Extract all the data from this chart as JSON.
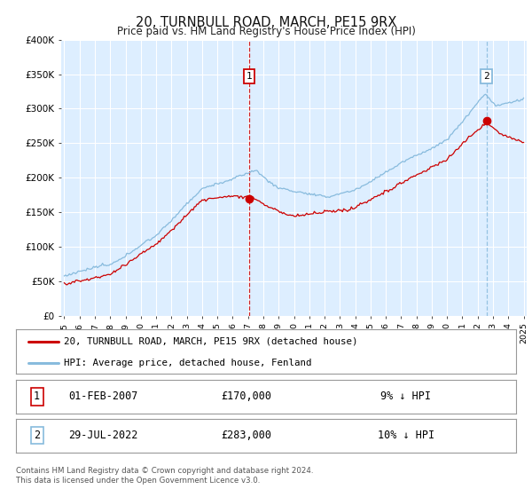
{
  "title": "20, TURNBULL ROAD, MARCH, PE15 9RX",
  "subtitle": "Price paid vs. HM Land Registry's House Price Index (HPI)",
  "legend_line1": "20, TURNBULL ROAD, MARCH, PE15 9RX (detached house)",
  "legend_line2": "HPI: Average price, detached house, Fenland",
  "annotation1_date": "01-FEB-2007",
  "annotation1_price": "£170,000",
  "annotation1_hpi": "9% ↓ HPI",
  "annotation2_date": "29-JUL-2022",
  "annotation2_price": "£283,000",
  "annotation2_hpi": "10% ↓ HPI",
  "footer": "Contains HM Land Registry data © Crown copyright and database right 2024.\nThis data is licensed under the Open Government Licence v3.0.",
  "red_line_color": "#cc0000",
  "blue_line_color": "#88bbdd",
  "plot_bg_color": "#ddeeff",
  "grid_color": "#ffffff",
  "vline1_color": "#cc0000",
  "vline2_color": "#88bbdd",
  "marker1_date_num": 2007.08,
  "marker2_date_num": 2022.57,
  "marker1_value": 170000,
  "marker2_value": 283000,
  "ylim": [
    0,
    400000
  ],
  "yticks": [
    0,
    50000,
    100000,
    150000,
    200000,
    250000,
    300000,
    350000,
    400000
  ],
  "ytick_labels": [
    "£0",
    "£50K",
    "£100K",
    "£150K",
    "£200K",
    "£250K",
    "£300K",
    "£350K",
    "£400K"
  ],
  "start_year": 1995,
  "end_year": 2025
}
